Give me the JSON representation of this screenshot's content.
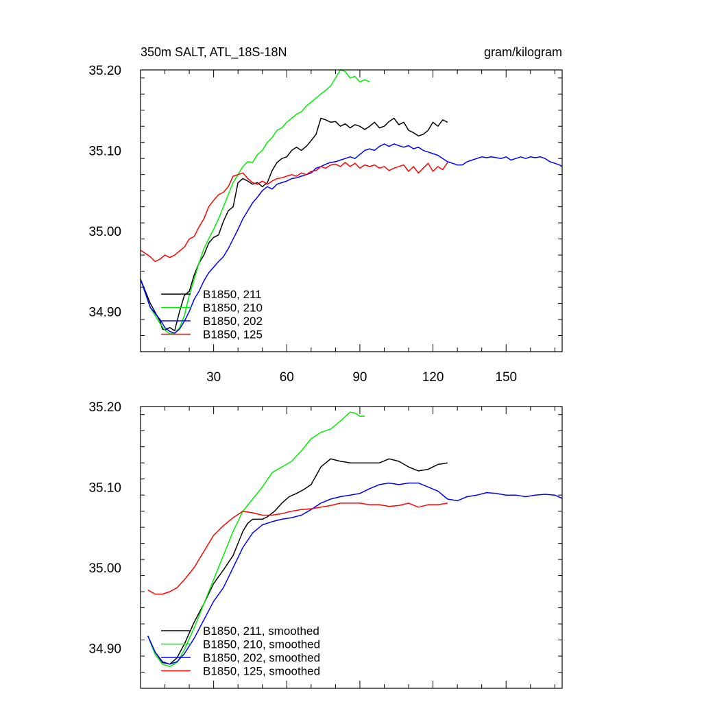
{
  "chart_data": [
    {
      "type": "line",
      "title": "350m SALT, ATL_18S-18N",
      "units": "gram/kilogram",
      "xlabel": "",
      "ylabel": "",
      "xlim": [
        0,
        173
      ],
      "ylim": [
        34.85,
        35.2
      ],
      "xticks": [
        30,
        60,
        90,
        120,
        150
      ],
      "xtick_labels": [
        "30",
        "60",
        "90",
        "120",
        "150"
      ],
      "yticks": [
        34.9,
        35.0,
        35.1,
        35.2
      ],
      "ytick_labels": [
        "34.90",
        "35.00",
        "35.10",
        "35.20"
      ],
      "legend_position": "bottom-left",
      "grid": false,
      "series": [
        {
          "name": "B1850, 211",
          "color": "#000000",
          "x": [
            0,
            4,
            8,
            9,
            10,
            12,
            14,
            16,
            18,
            20,
            22,
            24,
            26,
            28,
            30,
            32,
            34,
            36,
            38,
            40,
            42,
            44,
            46,
            48,
            50,
            52,
            54,
            56,
            58,
            60,
            62,
            64,
            66,
            68,
            70,
            72,
            74,
            76,
            78,
            80,
            82,
            84,
            86,
            88,
            90,
            92,
            94,
            96,
            98,
            100,
            102,
            104,
            106,
            108,
            110,
            112,
            114,
            116,
            118,
            120,
            122,
            124,
            126
          ],
          "y": [
            34.94,
            34.91,
            34.888,
            34.878,
            34.877,
            34.88,
            34.876,
            34.9,
            34.92,
            34.925,
            34.945,
            34.96,
            34.97,
            34.985,
            34.992,
            34.995,
            35.012,
            35.025,
            35.03,
            35.06,
            35.065,
            35.062,
            35.058,
            35.06,
            35.055,
            35.06,
            35.075,
            35.085,
            35.09,
            35.092,
            35.1,
            35.104,
            35.1,
            35.105,
            35.112,
            35.12,
            35.14,
            35.138,
            35.135,
            35.136,
            35.13,
            35.133,
            35.128,
            35.132,
            35.13,
            35.126,
            35.13,
            35.135,
            35.128,
            35.13,
            35.136,
            35.14,
            35.132,
            35.135,
            35.125,
            35.122,
            35.118,
            35.12,
            35.125,
            35.135,
            35.13,
            35.138,
            35.135
          ]
        },
        {
          "name": "B1850, 210",
          "color": "#00ee00",
          "x": [
            0,
            4,
            8,
            10,
            12,
            14,
            16,
            18,
            20,
            22,
            24,
            26,
            28,
            30,
            32,
            34,
            36,
            38,
            40,
            42,
            44,
            46,
            48,
            50,
            52,
            54,
            56,
            58,
            60,
            62,
            64,
            66,
            68,
            70,
            72,
            74,
            76,
            78,
            80,
            82,
            84,
            86,
            88,
            90,
            92,
            94
          ],
          "y": [
            34.94,
            34.905,
            34.885,
            34.877,
            34.872,
            34.873,
            34.88,
            34.895,
            34.92,
            34.94,
            34.96,
            34.978,
            34.99,
            35.002,
            35.015,
            35.03,
            35.045,
            35.06,
            35.07,
            35.08,
            35.086,
            35.085,
            35.095,
            35.1,
            35.11,
            35.116,
            35.125,
            35.128,
            35.135,
            35.14,
            35.145,
            35.148,
            35.155,
            35.16,
            35.165,
            35.17,
            35.175,
            35.18,
            35.19,
            35.2,
            35.198,
            35.19,
            35.192,
            35.185,
            35.188,
            35.185
          ]
        },
        {
          "name": "B1850, 202",
          "color": "#0000ff",
          "x": [
            0,
            4,
            8,
            10,
            12,
            14,
            16,
            18,
            20,
            22,
            24,
            26,
            28,
            30,
            32,
            34,
            36,
            38,
            40,
            42,
            44,
            46,
            48,
            50,
            52,
            54,
            56,
            58,
            60,
            62,
            64,
            66,
            68,
            70,
            72,
            74,
            76,
            78,
            80,
            82,
            84,
            86,
            88,
            90,
            92,
            94,
            96,
            98,
            100,
            102,
            104,
            106,
            108,
            110,
            112,
            114,
            116,
            118,
            120,
            122,
            124,
            126,
            128,
            130,
            132,
            134,
            136,
            138,
            140,
            142,
            144,
            146,
            148,
            150,
            152,
            154,
            156,
            158,
            160,
            162,
            164,
            166,
            168,
            170,
            172,
            173
          ],
          "y": [
            34.94,
            34.905,
            34.89,
            34.88,
            34.875,
            34.873,
            34.878,
            34.888,
            34.9,
            34.915,
            34.925,
            34.938,
            34.948,
            34.955,
            34.962,
            34.968,
            34.978,
            34.99,
            35.002,
            35.015,
            35.025,
            35.035,
            35.042,
            35.05,
            35.055,
            35.052,
            35.058,
            35.06,
            35.062,
            35.065,
            35.066,
            35.068,
            35.07,
            35.072,
            35.078,
            35.08,
            35.083,
            35.085,
            35.086,
            35.088,
            35.09,
            35.092,
            35.09,
            35.095,
            35.1,
            35.102,
            35.1,
            35.105,
            35.108,
            35.105,
            35.108,
            35.106,
            35.104,
            35.106,
            35.102,
            35.104,
            35.1,
            35.098,
            35.096,
            35.094,
            35.09,
            35.086,
            35.084,
            35.082,
            35.082,
            35.086,
            35.088,
            35.09,
            35.092,
            35.091,
            35.092,
            35.091,
            35.09,
            35.092,
            35.088,
            35.09,
            35.092,
            35.09,
            35.092,
            35.091,
            35.092,
            35.09,
            35.086,
            35.084,
            35.082,
            35.08
          ]
        },
        {
          "name": "B1850, 125",
          "color": "#ff0000",
          "x": [
            0,
            4,
            6,
            8,
            10,
            12,
            14,
            16,
            18,
            20,
            22,
            24,
            26,
            28,
            30,
            32,
            34,
            36,
            38,
            40,
            42,
            44,
            46,
            48,
            50,
            52,
            54,
            56,
            58,
            60,
            62,
            64,
            66,
            68,
            70,
            72,
            74,
            76,
            78,
            80,
            82,
            84,
            86,
            88,
            90,
            92,
            94,
            96,
            98,
            100,
            102,
            104,
            106,
            108,
            110,
            112,
            114,
            116,
            118,
            120,
            122,
            124,
            126
          ],
          "y": [
            34.976,
            34.968,
            34.962,
            34.965,
            34.97,
            34.967,
            34.97,
            34.975,
            34.98,
            34.99,
            34.993,
            35.005,
            35.015,
            35.03,
            35.038,
            35.045,
            35.048,
            35.055,
            35.068,
            35.07,
            35.072,
            35.065,
            35.06,
            35.058,
            35.062,
            35.058,
            35.062,
            35.065,
            35.066,
            35.068,
            35.07,
            35.068,
            35.072,
            35.07,
            35.074,
            35.075,
            35.08,
            35.078,
            35.082,
            35.083,
            35.08,
            35.085,
            35.08,
            35.084,
            35.078,
            35.082,
            35.08,
            35.082,
            35.078,
            35.08,
            35.075,
            35.078,
            35.08,
            35.082,
            35.074,
            35.08,
            35.072,
            35.078,
            35.084,
            35.074,
            35.08,
            35.076,
            35.085
          ]
        }
      ]
    },
    {
      "type": "line",
      "title": "",
      "units": "",
      "xlabel": "",
      "ylabel": "",
      "xlim": [
        0,
        173
      ],
      "ylim": [
        34.85,
        35.2
      ],
      "xticks": [
        30,
        60,
        90,
        120,
        150
      ],
      "xtick_labels": [],
      "yticks": [
        34.9,
        35.0,
        35.1,
        35.2
      ],
      "ytick_labels": [
        "34.90",
        "35.00",
        "35.10",
        "35.20"
      ],
      "legend_position": "bottom-left",
      "grid": false,
      "series": [
        {
          "name": "B1850, 211, smoothed",
          "color": "#000000",
          "x": [
            3,
            6,
            9,
            12,
            15,
            18,
            22,
            26,
            30,
            34,
            38,
            40,
            42,
            44,
            46,
            48,
            50,
            52,
            55,
            58,
            61,
            64,
            67,
            70,
            74,
            78,
            82,
            86,
            90,
            94,
            98,
            102,
            106,
            110,
            114,
            118,
            122,
            126
          ],
          "y": [
            34.915,
            34.895,
            34.882,
            34.88,
            34.888,
            34.905,
            34.932,
            34.955,
            34.98,
            34.997,
            35.015,
            35.03,
            35.045,
            35.055,
            35.06,
            35.06,
            35.06,
            35.063,
            35.07,
            35.08,
            35.088,
            35.092,
            35.097,
            35.103,
            35.125,
            35.135,
            35.132,
            35.13,
            35.13,
            35.13,
            35.13,
            35.135,
            35.132,
            35.125,
            35.12,
            35.122,
            35.128,
            35.13
          ]
        },
        {
          "name": "B1850, 210, smoothed",
          "color": "#00ee00",
          "x": [
            3,
            6,
            9,
            12,
            15,
            18,
            22,
            26,
            30,
            34,
            38,
            42,
            46,
            50,
            54,
            58,
            62,
            66,
            70,
            74,
            78,
            82,
            86,
            88,
            90,
            92
          ],
          "y": [
            34.915,
            34.892,
            34.88,
            34.877,
            34.882,
            34.898,
            34.925,
            34.955,
            34.985,
            35.015,
            35.045,
            35.07,
            35.085,
            35.1,
            35.118,
            35.125,
            35.132,
            35.145,
            35.16,
            35.168,
            35.172,
            35.182,
            35.193,
            35.192,
            35.188,
            35.188
          ]
        },
        {
          "name": "B1850, 202, smoothed",
          "color": "#0000ff",
          "x": [
            3,
            6,
            9,
            12,
            15,
            18,
            22,
            26,
            30,
            34,
            38,
            42,
            46,
            50,
            54,
            58,
            62,
            66,
            70,
            74,
            78,
            82,
            86,
            90,
            94,
            98,
            102,
            106,
            110,
            114,
            118,
            122,
            126,
            130,
            134,
            138,
            142,
            146,
            150,
            154,
            158,
            162,
            166,
            170,
            173
          ],
          "y": [
            34.915,
            34.895,
            34.883,
            34.88,
            34.883,
            34.893,
            34.912,
            34.935,
            34.958,
            34.975,
            35.0,
            35.025,
            35.043,
            35.053,
            35.057,
            35.06,
            35.062,
            35.065,
            35.072,
            35.08,
            35.085,
            35.088,
            35.09,
            35.092,
            35.098,
            35.103,
            35.105,
            35.103,
            35.105,
            35.105,
            35.1,
            35.095,
            35.085,
            35.083,
            35.088,
            35.09,
            35.093,
            35.092,
            35.09,
            35.09,
            35.088,
            35.09,
            35.091,
            35.09,
            35.086
          ]
        },
        {
          "name": "B1850, 125, smoothed",
          "color": "#ff0000",
          "x": [
            3,
            6,
            9,
            12,
            15,
            18,
            22,
            26,
            30,
            34,
            38,
            42,
            46,
            50,
            54,
            58,
            62,
            66,
            70,
            74,
            78,
            82,
            86,
            90,
            94,
            98,
            102,
            106,
            110,
            114,
            118,
            122,
            126
          ],
          "y": [
            34.972,
            34.967,
            34.967,
            34.97,
            34.975,
            34.985,
            35.0,
            35.02,
            35.04,
            35.052,
            35.062,
            35.07,
            35.068,
            35.065,
            35.065,
            35.067,
            35.07,
            35.072,
            35.073,
            35.075,
            35.077,
            35.08,
            35.08,
            35.08,
            35.078,
            35.078,
            35.076,
            35.077,
            35.08,
            35.075,
            35.078,
            35.078,
            35.08
          ]
        }
      ]
    }
  ]
}
